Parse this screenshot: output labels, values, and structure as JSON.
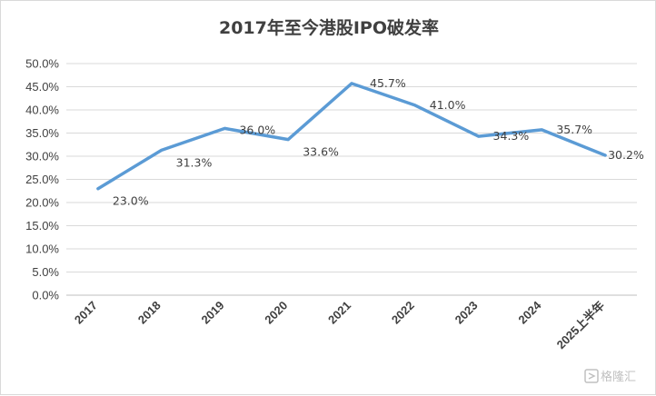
{
  "chart_data": {
    "type": "line",
    "title": "2017年至今港股IPO破发率",
    "xlabel": "",
    "ylabel": "",
    "categories": [
      "2017",
      "2018",
      "2019",
      "2020",
      "2021",
      "2022",
      "2023",
      "2024",
      "2025上半年"
    ],
    "series": [
      {
        "values": [
          23.0,
          31.3,
          36.0,
          33.6,
          45.7,
          41.0,
          34.3,
          35.7,
          30.2
        ],
        "labels": [
          "23.0%",
          "31.3%",
          "36.0%",
          "33.6%",
          "45.7%",
          "41.0%",
          "34.3%",
          "35.7%",
          "30.2%"
        ],
        "color": "#5b9bd5"
      }
    ],
    "ylim": [
      0,
      50
    ],
    "yticks": [
      "0.0%",
      "5.0%",
      "10.0%",
      "15.0%",
      "20.0%",
      "25.0%",
      "30.0%",
      "35.0%",
      "40.0%",
      "45.0%",
      "50.0%"
    ],
    "grid": true,
    "legend": "none"
  },
  "watermark": {
    "text": "格隆汇",
    "icon": "logo-icon"
  }
}
